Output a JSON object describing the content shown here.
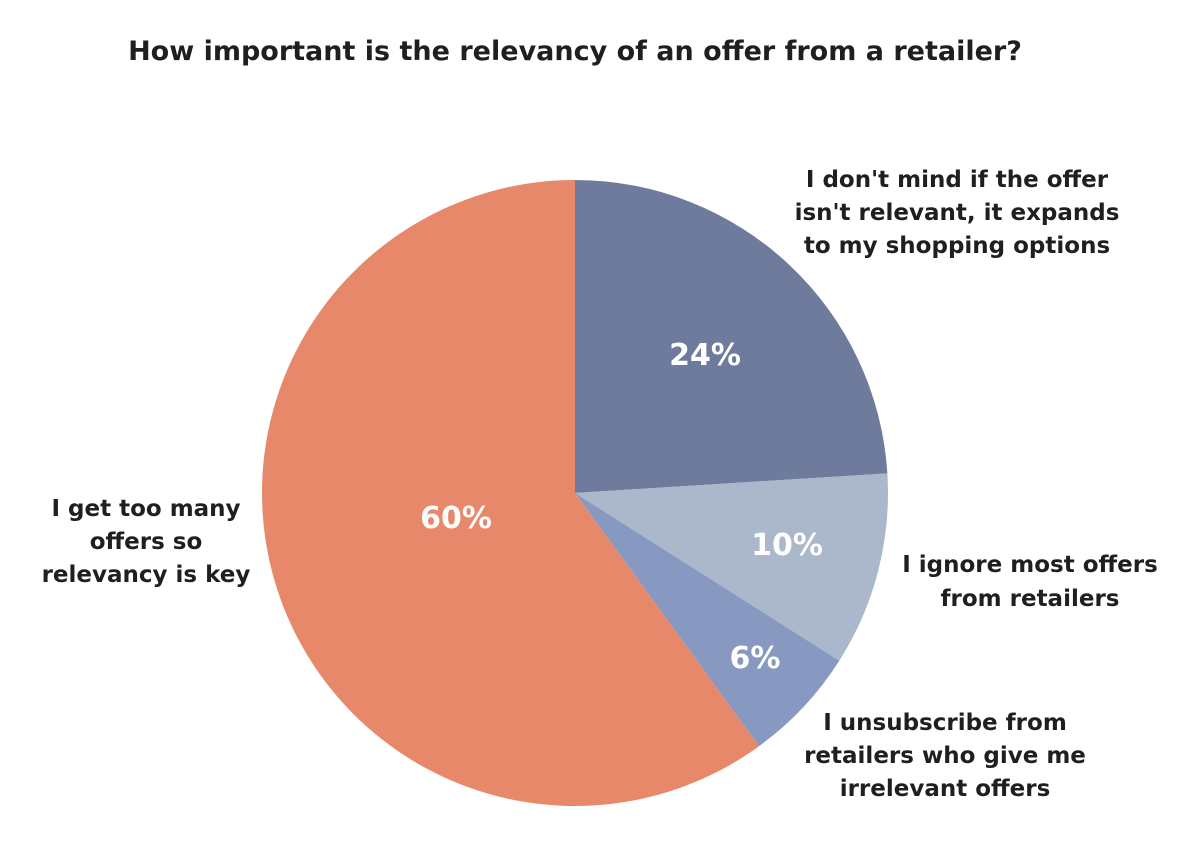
{
  "chart_data": {
    "type": "pie",
    "title": "How important is the relevancy of an offer from a retailer?",
    "slices": [
      {
        "name": "I don't mind if the offer isn't relevant, it expands to my shopping options",
        "label_lines": [
          "I don't mind if the offer",
          "isn't relevant, it expands",
          "to my shopping options"
        ],
        "value": 24,
        "value_label": "24%",
        "color": "#6e7b9c"
      },
      {
        "name": "I ignore most offers from retailers",
        "label_lines": [
          "I ignore most offers",
          "from retailers"
        ],
        "value": 10,
        "value_label": "10%",
        "color": "#abb7cb"
      },
      {
        "name": "I unsubscribe from retailers who give me irrelevant offers",
        "label_lines": [
          "I unsubscribe from",
          "retailers who give me",
          "irrelevant offers"
        ],
        "value": 6,
        "value_label": "6%",
        "color": "#8899c1"
      },
      {
        "name": "I get too many offers so relevancy is key",
        "label_lines": [
          "I get too many",
          "offers so",
          "relevancy is key"
        ],
        "value": 60,
        "value_label": "60%",
        "color": "#e7886b"
      }
    ],
    "start_angle": "12 o'clock",
    "direction": "clockwise",
    "legend": "none"
  }
}
